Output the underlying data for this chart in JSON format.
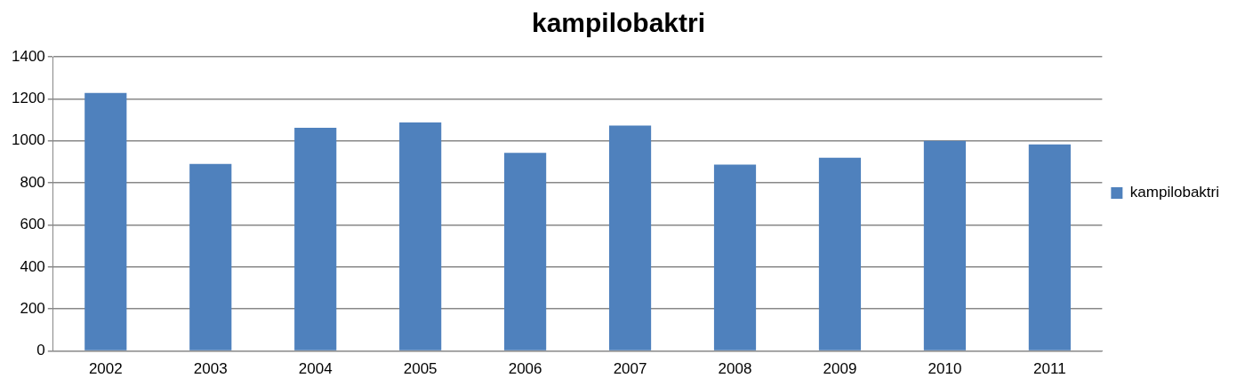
{
  "chart_data": {
    "type": "bar",
    "title": "kampilobaktri",
    "categories": [
      "2002",
      "2003",
      "2004",
      "2005",
      "2006",
      "2007",
      "2008",
      "2009",
      "2010",
      "2011"
    ],
    "series": [
      {
        "name": "kampilobaktri",
        "color": "#4f81bd",
        "values": [
          1228,
          890,
          1062,
          1088,
          943,
          1073,
          887,
          920,
          1000,
          983
        ]
      }
    ],
    "ylim": [
      0,
      1400
    ],
    "yticks": [
      0,
      200,
      400,
      600,
      800,
      1000,
      1200,
      1400
    ],
    "grid": "y",
    "legend": "right"
  }
}
